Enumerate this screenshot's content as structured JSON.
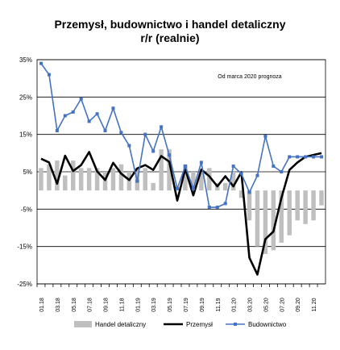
{
  "chart_data": {
    "type": "bar+line",
    "title_line1": "Przemysł, budownictwo i handel detaliczny",
    "title_line2": "r/r (realnie)",
    "annotation": "Od marca 2020 prognoza",
    "y_ticks": [
      "35%",
      "25%",
      "15%",
      "5%",
      "-5%",
      "-15%",
      "-25%"
    ],
    "ylim": [
      -25,
      35
    ],
    "grid": true,
    "legend_position": "bottom",
    "colors": {
      "handel": "#bfbfbf",
      "przemysl": "#000000",
      "budownictwo": "#4472c4"
    },
    "x_tick_labels": [
      "01.18",
      "03.18",
      "05.18",
      "07.18",
      "09.18",
      "11.18",
      "01.19",
      "03.19",
      "05.19",
      "07.19",
      "09.19",
      "11.19",
      "01.20",
      "03.20",
      "05.20",
      "07.20",
      "09.20",
      "11.20"
    ],
    "categories": [
      "01.18",
      "02.18",
      "03.18",
      "04.18",
      "05.18",
      "06.18",
      "07.18",
      "08.18",
      "09.18",
      "10.18",
      "11.18",
      "12.18",
      "01.19",
      "02.19",
      "03.19",
      "04.19",
      "05.19",
      "06.19",
      "07.19",
      "08.19",
      "09.19",
      "10.19",
      "11.19",
      "12.19",
      "01.20",
      "02.20",
      "03.20",
      "04.20",
      "05.20",
      "06.20",
      "07.20",
      "08.20",
      "09.20",
      "10.20",
      "11.20",
      "12.20"
    ],
    "series": [
      {
        "name": "Handel detaliczny",
        "kind": "bar",
        "values": [
          6,
          7,
          8,
          4,
          8,
          6,
          6,
          6,
          5,
          6,
          7,
          5,
          6,
          6,
          2,
          11,
          11,
          1,
          7,
          5,
          5,
          6,
          2,
          2,
          5,
          -2,
          -8,
          -15,
          -17,
          -16,
          -14,
          -12,
          -8,
          -9,
          -8,
          -4
        ]
      },
      {
        "name": "Przemysł",
        "kind": "line",
        "values": [
          8.5,
          7.5,
          1.8,
          9.3,
          5.2,
          6.8,
          10.3,
          5.1,
          2.8,
          7.4,
          4.5,
          2.8,
          5.9,
          6.8,
          5.5,
          9.2,
          7.7,
          -2.7,
          5.8,
          -1.3,
          5.6,
          3.8,
          1.1,
          3.8,
          1.1,
          4.9,
          -18,
          -22.5,
          -13,
          -11,
          -2,
          5.5,
          7.5,
          9,
          9.5,
          10
        ]
      },
      {
        "name": "Budownictwo",
        "kind": "line",
        "values": [
          34,
          31,
          16,
          20,
          21,
          24.5,
          18.5,
          20.5,
          16,
          22,
          15.5,
          12,
          2.5,
          15,
          10.5,
          17,
          9.5,
          0.5,
          6.5,
          0.5,
          7.5,
          -4.5,
          -4.5,
          -3.5,
          6.5,
          4.5,
          -0.5,
          4,
          14.5,
          6.5,
          5,
          9,
          9,
          9,
          9,
          9
        ]
      }
    ]
  }
}
